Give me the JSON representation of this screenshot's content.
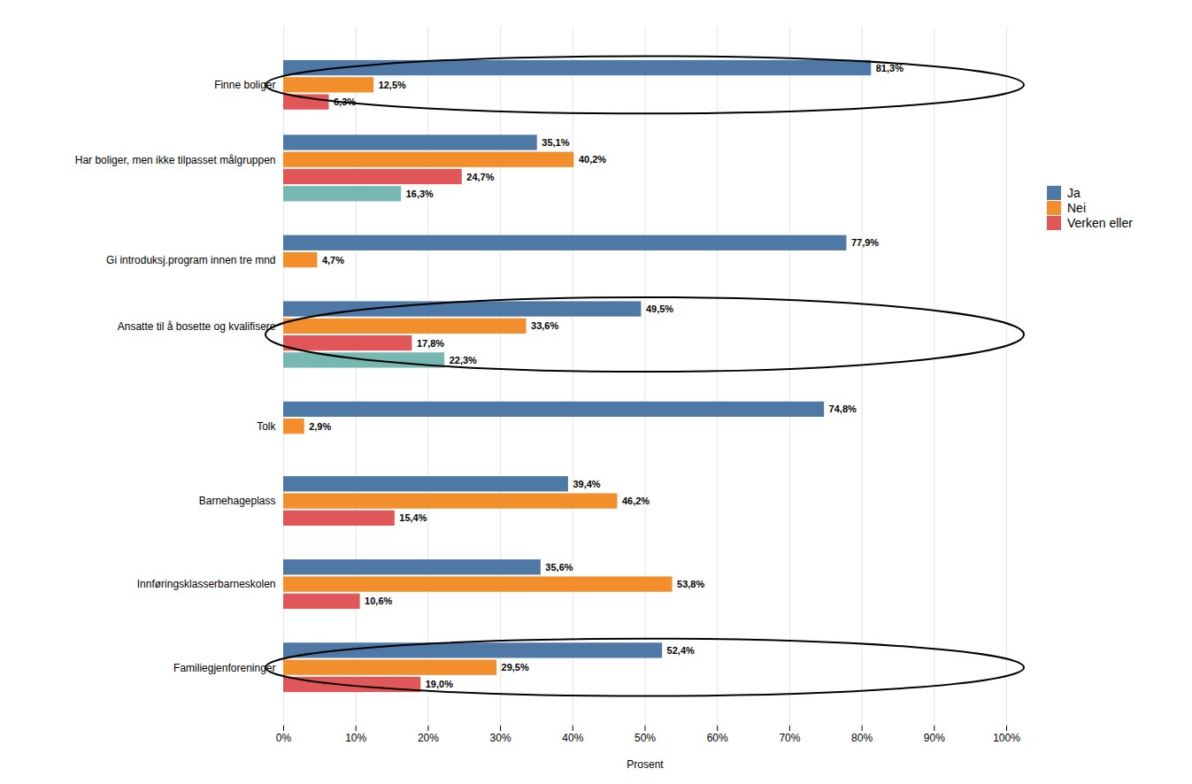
{
  "chart_data": {
    "type": "bar",
    "orientation": "horizontal",
    "categories": [
      "Finne boliger",
      "Har boliger, men ikke tilpasset målgruppen",
      "Gi introduksj.program innen tre mnd",
      "Ansatte til å bosette og kvalifisere",
      "Tolk",
      "Barnehageplass",
      "Innføringsklasserbarneskolen",
      "Familiegjenforeninger"
    ],
    "series": [
      {
        "name": "Ja",
        "values": [
          81.3,
          35.1,
          77.9,
          49.5,
          74.8,
          39.4,
          35.6,
          52.4
        ],
        "value_labels": [
          "81,3%",
          "35,1%",
          "77,9%",
          "49,5%",
          "74,8%",
          "39,4%",
          "35,6%",
          "52,4%"
        ]
      },
      {
        "name": "Nei",
        "values": [
          12.5,
          40.2,
          4.7,
          33.6,
          2.9,
          46.2,
          53.8,
          29.5
        ],
        "value_labels": [
          "12,5%",
          "40,2%",
          "4,7%",
          "33,6%",
          "2,9%",
          "46,2%",
          "53,8%",
          "29,5%"
        ]
      },
      {
        "name": "Verken eller",
        "values": [
          6.3,
          24.7,
          null,
          17.8,
          null,
          15.4,
          10.6,
          19.0
        ],
        "value_labels": [
          "6,3%",
          "24,7%",
          null,
          "17,8%",
          null,
          "15,4%",
          "10,6%",
          "19,0%"
        ]
      },
      {
        "name": null,
        "values": [
          null,
          16.3,
          null,
          22.3,
          null,
          null,
          null,
          null
        ],
        "value_labels": [
          null,
          "16,3%",
          null,
          "22,3%",
          null,
          null,
          null,
          null
        ]
      }
    ],
    "xlabel": "Prosent",
    "xlim": [
      0,
      100
    ],
    "xticks": [
      {
        "value": 0,
        "label": "0%"
      },
      {
        "value": 10,
        "label": "10%"
      },
      {
        "value": 20,
        "label": "20%"
      },
      {
        "value": 30,
        "label": "30%"
      },
      {
        "value": 40,
        "label": "40%"
      },
      {
        "value": 50,
        "label": "50%"
      },
      {
        "value": 60,
        "label": "60%"
      },
      {
        "value": 70,
        "label": "70%"
      },
      {
        "value": 80,
        "label": "80%"
      },
      {
        "value": 90,
        "label": "90%"
      },
      {
        "value": 100,
        "label": "100%"
      }
    ],
    "grid": true,
    "legend": "right",
    "data_labels": true,
    "highlight": [
      "Finne boliger",
      "Ansatte til å bosette og kvalifisere",
      "Familiegjenforeninger"
    ]
  }
}
